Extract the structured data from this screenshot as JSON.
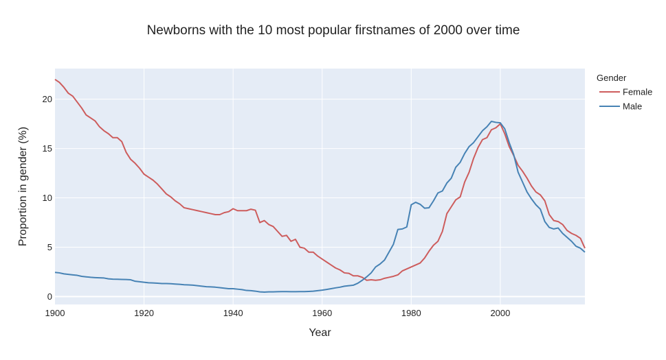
{
  "chart_data": {
    "type": "line",
    "title": "Newborns with the 10 most popular firstnames of 2000 over time",
    "xlabel": "Year",
    "ylabel": "Proportion in gender (%)",
    "xlim": [
      1900,
      2019
    ],
    "ylim": [
      -0.8,
      23.1
    ],
    "x_ticks": [
      1900,
      1920,
      1940,
      1960,
      1980,
      2000
    ],
    "y_ticks": [
      0,
      5,
      10,
      15,
      20
    ],
    "grid": true,
    "legend": {
      "title": "Gender",
      "placement": "top-right"
    },
    "series": [
      {
        "name": "Female",
        "color": "#cd5c5c",
        "points": [
          [
            1900,
            22.0
          ],
          [
            1901,
            21.7
          ],
          [
            1902,
            21.2
          ],
          [
            1903,
            20.6
          ],
          [
            1904,
            20.3
          ],
          [
            1905,
            19.7
          ],
          [
            1906,
            19.1
          ],
          [
            1907,
            18.4
          ],
          [
            1908,
            18.1
          ],
          [
            1909,
            17.8
          ],
          [
            1910,
            17.2
          ],
          [
            1911,
            16.8
          ],
          [
            1912,
            16.5
          ],
          [
            1913,
            16.1
          ],
          [
            1914,
            16.1
          ],
          [
            1915,
            15.7
          ],
          [
            1916,
            14.6
          ],
          [
            1917,
            13.9
          ],
          [
            1918,
            13.5
          ],
          [
            1919,
            13.0
          ],
          [
            1920,
            12.4
          ],
          [
            1921,
            12.1
          ],
          [
            1922,
            11.8
          ],
          [
            1923,
            11.4
          ],
          [
            1924,
            10.9
          ],
          [
            1925,
            10.4
          ],
          [
            1926,
            10.1
          ],
          [
            1927,
            9.7
          ],
          [
            1928,
            9.4
          ],
          [
            1929,
            9.0
          ],
          [
            1930,
            8.9
          ],
          [
            1931,
            8.8
          ],
          [
            1932,
            8.7
          ],
          [
            1933,
            8.6
          ],
          [
            1934,
            8.5
          ],
          [
            1935,
            8.4
          ],
          [
            1936,
            8.3
          ],
          [
            1937,
            8.3
          ],
          [
            1938,
            8.5
          ],
          [
            1939,
            8.6
          ],
          [
            1940,
            8.9
          ],
          [
            1941,
            8.7
          ],
          [
            1942,
            8.7
          ],
          [
            1943,
            8.7
          ],
          [
            1944,
            8.85
          ],
          [
            1945,
            8.75
          ],
          [
            1946,
            7.5
          ],
          [
            1947,
            7.7
          ],
          [
            1948,
            7.3
          ],
          [
            1949,
            7.1
          ],
          [
            1950,
            6.6
          ],
          [
            1951,
            6.1
          ],
          [
            1952,
            6.2
          ],
          [
            1953,
            5.6
          ],
          [
            1954,
            5.8
          ],
          [
            1955,
            5.0
          ],
          [
            1956,
            4.9
          ],
          [
            1957,
            4.5
          ],
          [
            1958,
            4.5
          ],
          [
            1959,
            4.1
          ],
          [
            1960,
            3.8
          ],
          [
            1961,
            3.5
          ],
          [
            1962,
            3.2
          ],
          [
            1963,
            2.9
          ],
          [
            1964,
            2.7
          ],
          [
            1965,
            2.4
          ],
          [
            1966,
            2.35
          ],
          [
            1967,
            2.1
          ],
          [
            1968,
            2.1
          ],
          [
            1969,
            1.95
          ],
          [
            1970,
            1.65
          ],
          [
            1971,
            1.7
          ],
          [
            1972,
            1.65
          ],
          [
            1973,
            1.7
          ],
          [
            1974,
            1.85
          ],
          [
            1975,
            1.95
          ],
          [
            1976,
            2.05
          ],
          [
            1977,
            2.2
          ],
          [
            1978,
            2.6
          ],
          [
            1979,
            2.8
          ],
          [
            1980,
            3.0
          ],
          [
            1981,
            3.2
          ],
          [
            1982,
            3.4
          ],
          [
            1983,
            3.9
          ],
          [
            1984,
            4.6
          ],
          [
            1985,
            5.2
          ],
          [
            1986,
            5.6
          ],
          [
            1987,
            6.6
          ],
          [
            1988,
            8.4
          ],
          [
            1989,
            9.1
          ],
          [
            1990,
            9.8
          ],
          [
            1991,
            10.1
          ],
          [
            1992,
            11.6
          ],
          [
            1993,
            12.6
          ],
          [
            1994,
            14.0
          ],
          [
            1995,
            15.1
          ],
          [
            1996,
            15.9
          ],
          [
            1997,
            16.1
          ],
          [
            1998,
            16.9
          ],
          [
            1999,
            17.1
          ],
          [
            2000,
            17.5
          ],
          [
            2001,
            16.5
          ],
          [
            2002,
            15.2
          ],
          [
            2003,
            14.3
          ],
          [
            2004,
            13.3
          ],
          [
            2005,
            12.7
          ],
          [
            2006,
            12.0
          ],
          [
            2007,
            11.2
          ],
          [
            2008,
            10.6
          ],
          [
            2009,
            10.3
          ],
          [
            2010,
            9.7
          ],
          [
            2011,
            8.3
          ],
          [
            2012,
            7.7
          ],
          [
            2013,
            7.6
          ],
          [
            2014,
            7.3
          ],
          [
            2015,
            6.7
          ],
          [
            2016,
            6.4
          ],
          [
            2017,
            6.2
          ],
          [
            2018,
            5.9
          ],
          [
            2019,
            4.9
          ]
        ]
      },
      {
        "name": "Male",
        "color": "#4682b4",
        "points": [
          [
            1900,
            2.45
          ],
          [
            1901,
            2.4
          ],
          [
            1902,
            2.3
          ],
          [
            1903,
            2.25
          ],
          [
            1904,
            2.2
          ],
          [
            1905,
            2.15
          ],
          [
            1906,
            2.05
          ],
          [
            1907,
            2.0
          ],
          [
            1908,
            1.95
          ],
          [
            1909,
            1.92
          ],
          [
            1910,
            1.9
          ],
          [
            1911,
            1.88
          ],
          [
            1912,
            1.8
          ],
          [
            1913,
            1.76
          ],
          [
            1914,
            1.75
          ],
          [
            1915,
            1.74
          ],
          [
            1916,
            1.73
          ],
          [
            1917,
            1.7
          ],
          [
            1918,
            1.55
          ],
          [
            1919,
            1.5
          ],
          [
            1920,
            1.45
          ],
          [
            1921,
            1.4
          ],
          [
            1922,
            1.38
          ],
          [
            1923,
            1.35
          ],
          [
            1924,
            1.32
          ],
          [
            1925,
            1.32
          ],
          [
            1926,
            1.3
          ],
          [
            1927,
            1.27
          ],
          [
            1928,
            1.24
          ],
          [
            1929,
            1.2
          ],
          [
            1930,
            1.18
          ],
          [
            1931,
            1.15
          ],
          [
            1932,
            1.1
          ],
          [
            1933,
            1.05
          ],
          [
            1934,
            1.0
          ],
          [
            1935,
            0.98
          ],
          [
            1936,
            0.95
          ],
          [
            1937,
            0.9
          ],
          [
            1938,
            0.85
          ],
          [
            1939,
            0.8
          ],
          [
            1940,
            0.8
          ],
          [
            1941,
            0.75
          ],
          [
            1942,
            0.7
          ],
          [
            1943,
            0.62
          ],
          [
            1944,
            0.6
          ],
          [
            1945,
            0.55
          ],
          [
            1946,
            0.48
          ],
          [
            1947,
            0.45
          ],
          [
            1948,
            0.48
          ],
          [
            1949,
            0.48
          ],
          [
            1950,
            0.49
          ],
          [
            1951,
            0.5
          ],
          [
            1952,
            0.5
          ],
          [
            1953,
            0.49
          ],
          [
            1954,
            0.49
          ],
          [
            1955,
            0.5
          ],
          [
            1956,
            0.5
          ],
          [
            1957,
            0.52
          ],
          [
            1958,
            0.55
          ],
          [
            1959,
            0.6
          ],
          [
            1960,
            0.65
          ],
          [
            1961,
            0.72
          ],
          [
            1962,
            0.8
          ],
          [
            1963,
            0.88
          ],
          [
            1964,
            0.95
          ],
          [
            1965,
            1.05
          ],
          [
            1966,
            1.1
          ],
          [
            1967,
            1.15
          ],
          [
            1968,
            1.35
          ],
          [
            1969,
            1.65
          ],
          [
            1970,
            2.0
          ],
          [
            1971,
            2.4
          ],
          [
            1972,
            3.0
          ],
          [
            1973,
            3.3
          ],
          [
            1974,
            3.7
          ],
          [
            1975,
            4.5
          ],
          [
            1976,
            5.3
          ],
          [
            1977,
            6.8
          ],
          [
            1978,
            6.85
          ],
          [
            1979,
            7.05
          ],
          [
            1980,
            9.3
          ],
          [
            1981,
            9.55
          ],
          [
            1982,
            9.35
          ],
          [
            1983,
            8.95
          ],
          [
            1984,
            9.0
          ],
          [
            1985,
            9.7
          ],
          [
            1986,
            10.5
          ],
          [
            1987,
            10.7
          ],
          [
            1988,
            11.5
          ],
          [
            1989,
            12.0
          ],
          [
            1990,
            13.1
          ],
          [
            1991,
            13.6
          ],
          [
            1992,
            14.5
          ],
          [
            1993,
            15.2
          ],
          [
            1994,
            15.6
          ],
          [
            1995,
            16.2
          ],
          [
            1996,
            16.8
          ],
          [
            1997,
            17.2
          ],
          [
            1998,
            17.75
          ],
          [
            1999,
            17.65
          ],
          [
            2000,
            17.6
          ],
          [
            2001,
            17.0
          ],
          [
            2002,
            15.6
          ],
          [
            2003,
            14.4
          ],
          [
            2004,
            12.6
          ],
          [
            2005,
            11.6
          ],
          [
            2006,
            10.6
          ],
          [
            2007,
            9.9
          ],
          [
            2008,
            9.3
          ],
          [
            2009,
            8.85
          ],
          [
            2010,
            7.6
          ],
          [
            2011,
            7.0
          ],
          [
            2012,
            6.85
          ],
          [
            2013,
            6.95
          ],
          [
            2014,
            6.4
          ],
          [
            2015,
            6.0
          ],
          [
            2016,
            5.6
          ],
          [
            2017,
            5.1
          ],
          [
            2018,
            4.9
          ],
          [
            2019,
            4.5
          ]
        ]
      }
    ]
  }
}
